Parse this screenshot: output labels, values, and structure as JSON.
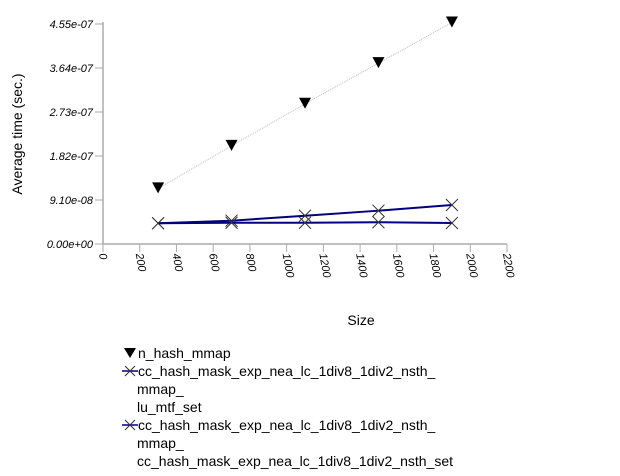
{
  "chart_data": {
    "type": "line",
    "title": "",
    "xlabel": "Size",
    "ylabel": "Average time (sec.)",
    "xlim": [
      0,
      2200
    ],
    "ylim": [
      0,
      4.55e-07
    ],
    "xticks": [
      "0",
      "200",
      "400",
      "600",
      "800",
      "1000",
      "1200",
      "1400",
      "1600",
      "1800",
      "2000",
      "2200"
    ],
    "yticks": [
      "0.00e+00",
      "9.10e-08",
      "1.82e-07",
      "2.73e-07",
      "3.64e-07",
      "4.55e-07"
    ],
    "grid": false,
    "legend_position": "bottom",
    "series": [
      {
        "name": "n_hash_mmap",
        "marker": "triangle-down",
        "color": "#000000",
        "line": "dotted-gray",
        "x": [
          300,
          700,
          1100,
          1500,
          1900
        ],
        "y": [
          1.15e-07,
          2.03e-07,
          2.9e-07,
          3.74e-07,
          4.58e-07
        ],
        "legend_lines": [
          "n_hash_mmap"
        ]
      },
      {
        "name": "cc_hash_mask_exp_nea_lc_1div8_1div2_nsth_mmap_lu_mtf_set",
        "marker": "x",
        "color": "#000080",
        "x": [
          300,
          700,
          1100,
          1500,
          1900
        ],
        "y": [
          4.28e-08,
          4.82e-08,
          5.85e-08,
          6.89e-08,
          8.07e-08
        ],
        "legend_lines": [
          "cc_hash_mask_exp_nea_lc_1div8_1div2_nsth_",
          "mmap_",
          "lu_mtf_set"
        ]
      },
      {
        "name": "cc_hash_mask_exp_nea_lc_1div8_1div2_nsth_mmap_cc_hash_mask_exp_nea_lc_1div8_1div2_nsth_set",
        "marker": "x",
        "color": "#000080",
        "x": [
          300,
          700,
          1100,
          1500,
          1900
        ],
        "y": [
          4.3e-08,
          4.4e-08,
          4.4e-08,
          4.5e-08,
          4.35e-08
        ],
        "legend_lines": [
          "cc_hash_mask_exp_nea_lc_1div8_1div2_nsth_",
          "mmap_",
          "cc_hash_mask_exp_nea_lc_1div8_1div2_nsth_set"
        ]
      }
    ]
  }
}
